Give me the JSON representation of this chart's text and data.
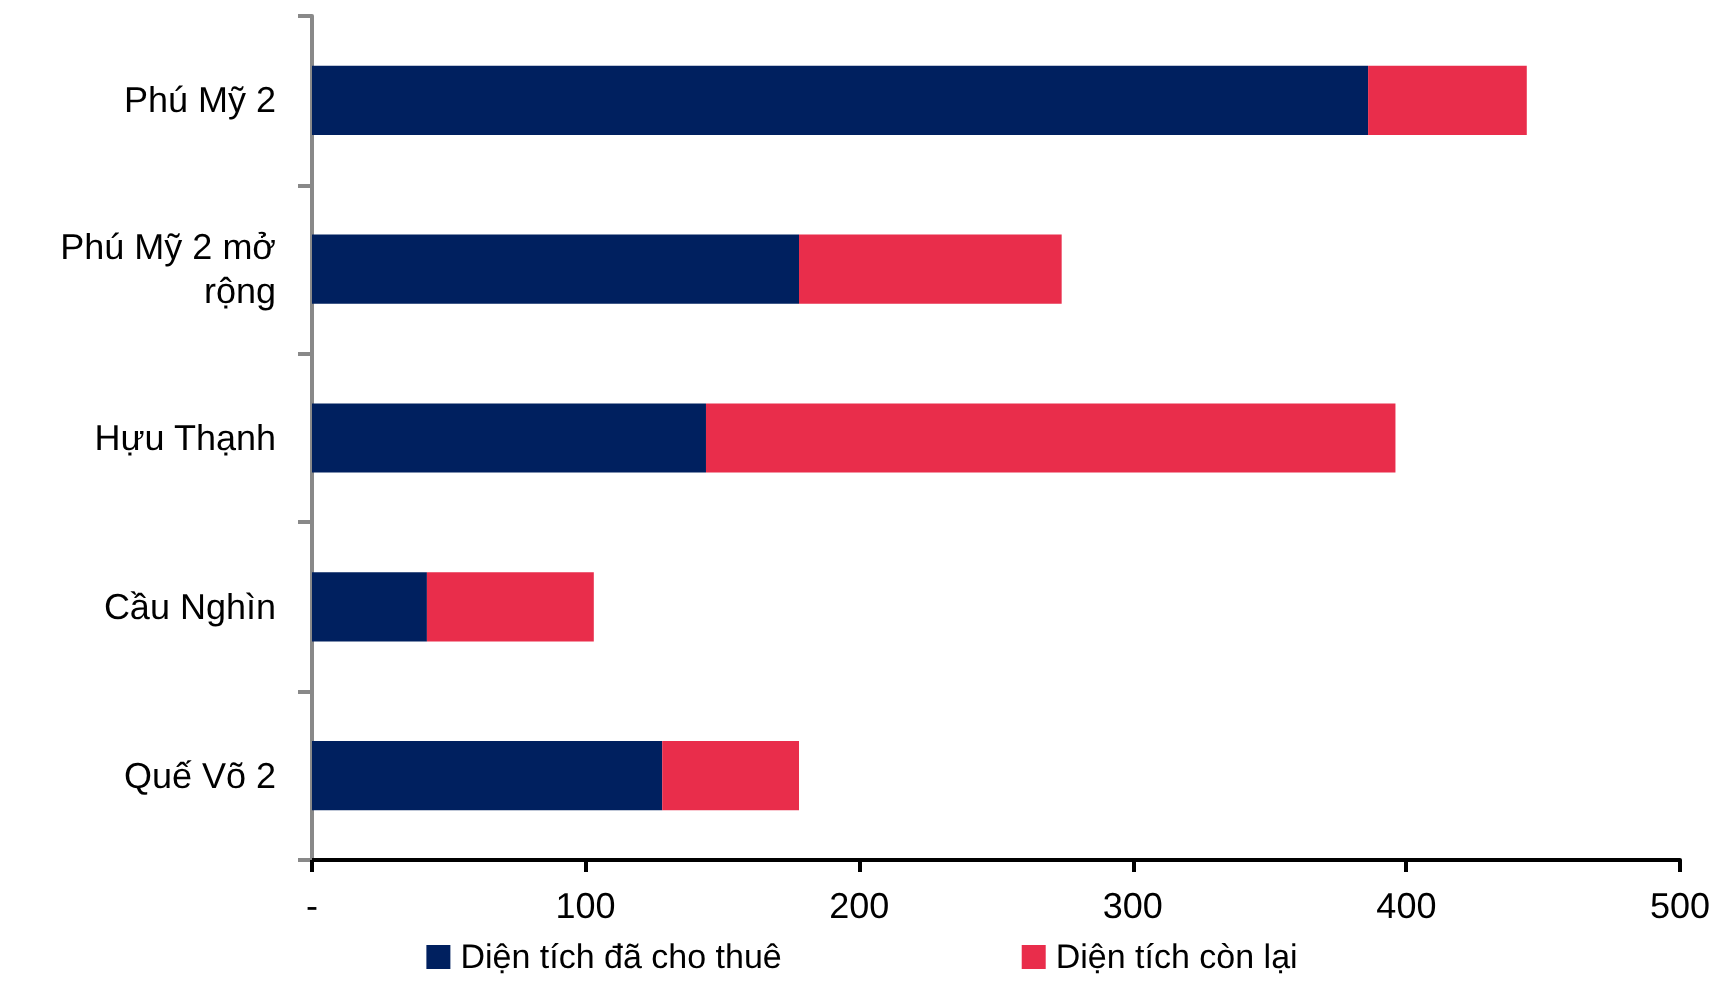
{
  "chart_data": {
    "type": "bar",
    "orientation": "horizontal",
    "stacked": true,
    "categories": [
      "Phú Mỹ 2",
      "Phú Mỹ 2 mở rộng",
      "Hựu Thạnh",
      "Cầu Nghìn",
      "Quế Võ 2"
    ],
    "series": [
      {
        "name": "Diện tích đã cho thuê",
        "color": "#00205f",
        "values": [
          386,
          178,
          144,
          42,
          128
        ]
      },
      {
        "name": "Diện tích còn lại",
        "color": "#e92d4b",
        "values": [
          58,
          96,
          252,
          61,
          50
        ]
      }
    ],
    "xlim": [
      0,
      500
    ],
    "xticks": [
      {
        "value": 0,
        "label": "-"
      },
      100,
      200,
      300,
      400,
      500
    ],
    "grid": false,
    "legend": "bottom"
  }
}
